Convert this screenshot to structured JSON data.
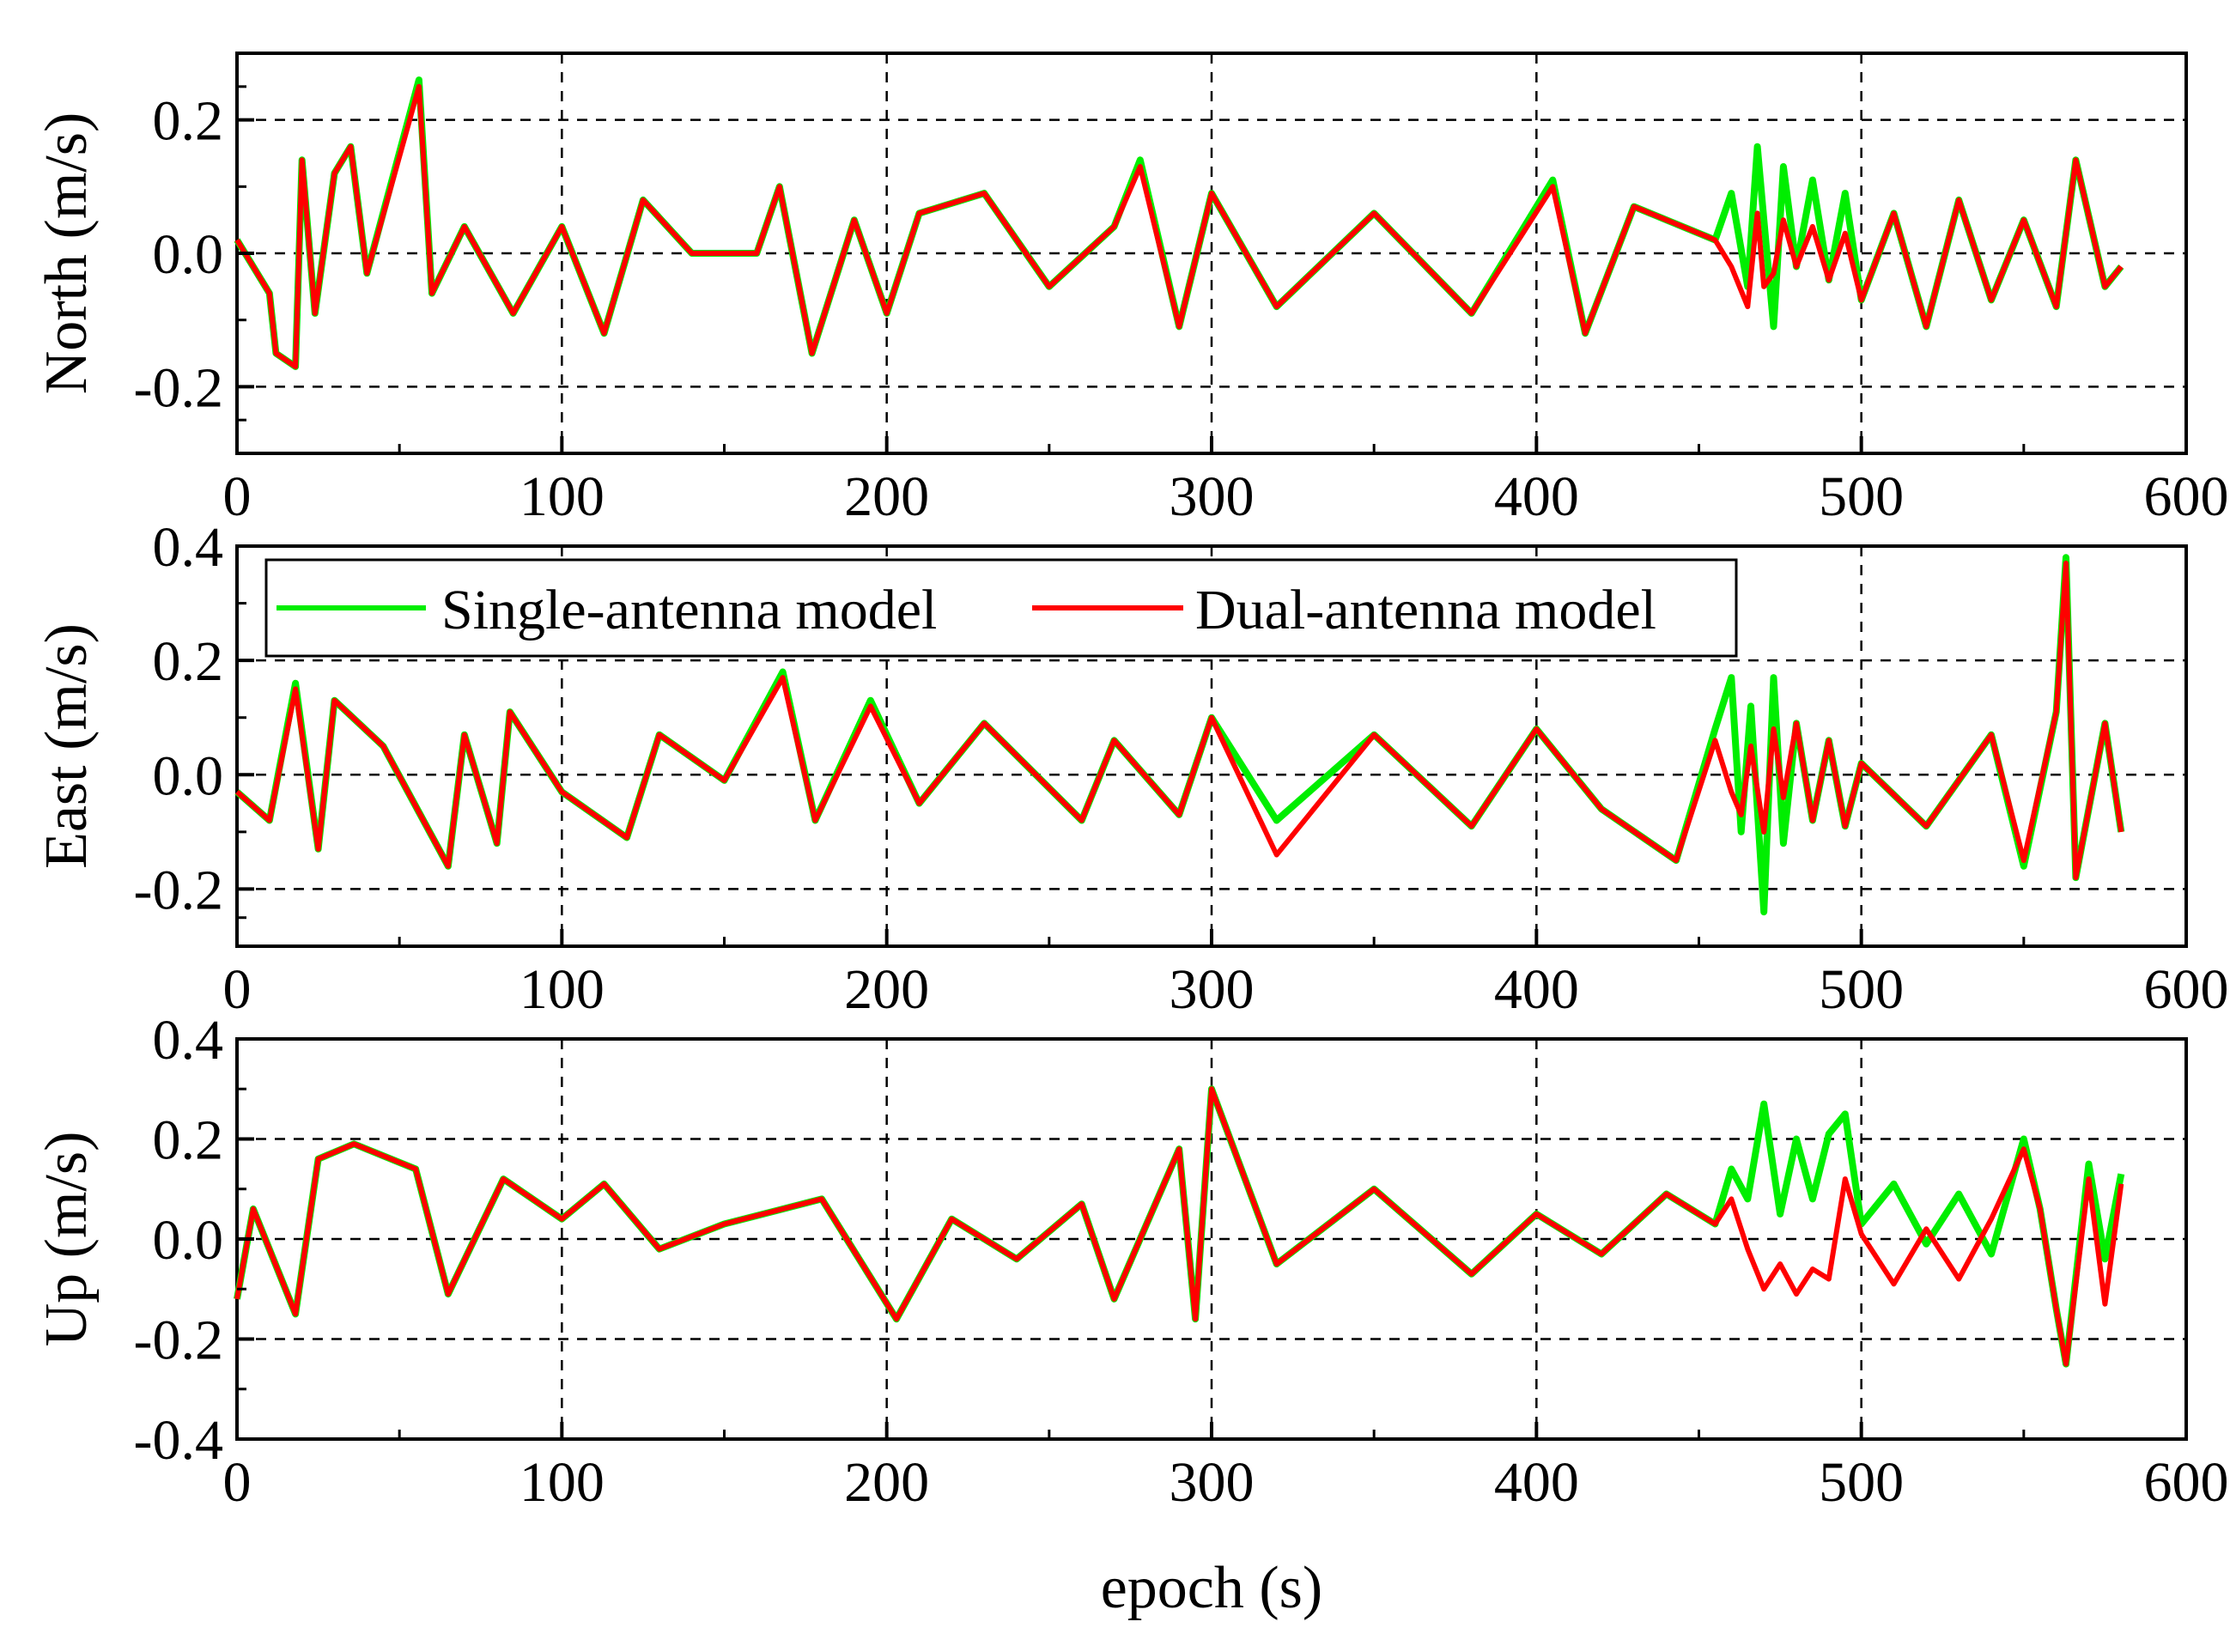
{
  "chart_data": [
    {
      "type": "line",
      "ylabel": "North (m/s)",
      "xlabel": "",
      "xlim": [
        0,
        600
      ],
      "ylim": [
        -0.3,
        0.3
      ],
      "xticks": [
        "0",
        "100",
        "200",
        "300",
        "400",
        "500",
        "600"
      ],
      "yticks": [
        "-0.2",
        "0.0",
        "0.2"
      ],
      "ytick_values": [
        -0.2,
        0.0,
        0.2
      ],
      "grid": true,
      "series": [
        {
          "name": "Single-antenna model",
          "color": "#00ee00",
          "x": [
            0,
            10,
            12,
            18,
            20,
            24,
            30,
            35,
            40,
            56,
            60,
            70,
            85,
            100,
            113,
            125,
            140,
            160,
            167,
            177,
            190,
            200,
            210,
            230,
            250,
            270,
            278,
            290,
            300,
            320,
            350,
            380,
            405,
            415,
            430,
            455,
            460,
            465,
            468,
            470,
            473,
            476,
            480,
            485,
            490,
            495,
            500,
            510,
            520,
            530,
            540,
            550,
            560,
            566,
            575,
            580
          ],
          "y": [
            0.02,
            -0.06,
            -0.15,
            -0.17,
            0.14,
            -0.09,
            0.12,
            0.16,
            -0.03,
            0.26,
            -0.06,
            0.04,
            -0.09,
            0.04,
            -0.12,
            0.08,
            0.0,
            0.0,
            0.1,
            -0.15,
            0.05,
            -0.09,
            0.06,
            0.09,
            -0.05,
            0.04,
            0.14,
            -0.11,
            0.09,
            -0.08,
            0.06,
            -0.09,
            0.11,
            -0.12,
            0.07,
            0.02,
            0.09,
            -0.05,
            0.16,
            0.05,
            -0.11,
            0.13,
            -0.02,
            0.11,
            -0.04,
            0.09,
            -0.07,
            0.06,
            -0.11,
            0.08,
            -0.07,
            0.05,
            -0.08,
            0.14,
            -0.05,
            -0.02
          ]
        },
        {
          "name": "Dual-antenna model",
          "color": "#ff0000",
          "x": [
            0,
            10,
            12,
            18,
            20,
            24,
            30,
            35,
            40,
            56,
            60,
            70,
            85,
            100,
            113,
            125,
            140,
            160,
            167,
            177,
            190,
            200,
            210,
            230,
            250,
            270,
            278,
            290,
            300,
            320,
            350,
            380,
            405,
            415,
            430,
            455,
            460,
            465,
            468,
            470,
            473,
            476,
            480,
            485,
            490,
            495,
            500,
            510,
            520,
            530,
            540,
            550,
            560,
            566,
            575,
            580
          ],
          "y": [
            0.02,
            -0.06,
            -0.15,
            -0.17,
            0.14,
            -0.09,
            0.12,
            0.16,
            -0.03,
            0.25,
            -0.06,
            0.04,
            -0.09,
            0.04,
            -0.12,
            0.08,
            0.0,
            0.0,
            0.1,
            -0.15,
            0.05,
            -0.09,
            0.06,
            0.09,
            -0.05,
            0.04,
            0.13,
            -0.11,
            0.09,
            -0.08,
            0.06,
            -0.09,
            0.1,
            -0.12,
            0.07,
            0.02,
            -0.02,
            -0.08,
            0.06,
            -0.05,
            -0.03,
            0.05,
            -0.02,
            0.04,
            -0.04,
            0.03,
            -0.07,
            0.06,
            -0.11,
            0.08,
            -0.07,
            0.05,
            -0.08,
            0.14,
            -0.05,
            -0.02
          ]
        }
      ]
    },
    {
      "type": "line",
      "ylabel": "East (m/s)",
      "xlabel": "",
      "xlim": [
        0,
        600
      ],
      "ylim": [
        -0.3,
        0.4
      ],
      "xticks": [
        "0",
        "100",
        "200",
        "300",
        "400",
        "500",
        "600"
      ],
      "yticks": [
        "-0.2",
        "0.0",
        "0.2",
        "0.4"
      ],
      "ytick_values": [
        -0.2,
        0.0,
        0.2,
        0.4
      ],
      "grid": true,
      "series": [
        {
          "name": "Single-antenna model",
          "color": "#00ee00",
          "x": [
            0,
            10,
            18,
            25,
            30,
            45,
            65,
            70,
            80,
            84,
            100,
            120,
            130,
            150,
            168,
            178,
            195,
            210,
            230,
            260,
            270,
            290,
            300,
            320,
            350,
            380,
            400,
            420,
            443,
            455,
            460,
            463,
            466,
            470,
            473,
            476,
            480,
            485,
            490,
            495,
            500,
            520,
            540,
            550,
            560,
            563,
            566,
            575,
            580
          ],
          "y": [
            -0.03,
            -0.08,
            0.16,
            -0.13,
            0.13,
            0.05,
            -0.16,
            0.07,
            -0.12,
            0.11,
            -0.03,
            -0.11,
            0.07,
            -0.01,
            0.18,
            -0.08,
            0.13,
            -0.05,
            0.09,
            -0.08,
            0.06,
            -0.07,
            0.1,
            -0.08,
            0.07,
            -0.09,
            0.08,
            -0.06,
            -0.15,
            0.08,
            0.17,
            -0.1,
            0.12,
            -0.24,
            0.17,
            -0.12,
            0.09,
            -0.08,
            0.06,
            -0.09,
            0.02,
            -0.09,
            0.07,
            -0.16,
            0.11,
            0.38,
            -0.18,
            0.09,
            -0.1
          ]
        },
        {
          "name": "Dual-antenna model",
          "color": "#ff0000",
          "x": [
            0,
            10,
            18,
            25,
            30,
            45,
            65,
            70,
            80,
            84,
            100,
            120,
            130,
            150,
            168,
            178,
            195,
            210,
            230,
            260,
            270,
            290,
            300,
            320,
            350,
            380,
            400,
            420,
            443,
            455,
            460,
            463,
            466,
            470,
            473,
            476,
            480,
            485,
            490,
            495,
            500,
            520,
            540,
            550,
            560,
            563,
            566,
            575,
            580
          ],
          "y": [
            -0.03,
            -0.08,
            0.15,
            -0.13,
            0.13,
            0.05,
            -0.16,
            0.07,
            -0.12,
            0.11,
            -0.03,
            -0.11,
            0.07,
            -0.01,
            0.17,
            -0.08,
            0.12,
            -0.05,
            0.09,
            -0.08,
            0.06,
            -0.07,
            0.1,
            -0.14,
            0.07,
            -0.09,
            0.08,
            -0.06,
            -0.15,
            0.06,
            -0.03,
            -0.07,
            0.05,
            -0.1,
            0.08,
            -0.04,
            0.09,
            -0.08,
            0.06,
            -0.09,
            0.02,
            -0.09,
            0.07,
            -0.15,
            0.11,
            0.37,
            -0.18,
            0.09,
            -0.1
          ]
        }
      ]
    },
    {
      "type": "line",
      "ylabel": "Up (m/s)",
      "xlabel": "epoch (s)",
      "xlim": [
        0,
        600
      ],
      "ylim": [
        -0.4,
        0.4
      ],
      "xticks": [
        "0",
        "100",
        "200",
        "300",
        "400",
        "500",
        "600"
      ],
      "yticks": [
        "-0.4",
        "-0.2",
        "0.0",
        "0.2",
        "0.4"
      ],
      "ytick_values": [
        -0.4,
        -0.2,
        0.0,
        0.2,
        0.4
      ],
      "grid": true,
      "series": [
        {
          "name": "Single-antenna model",
          "color": "#00ee00",
          "x": [
            0,
            5,
            18,
            25,
            36,
            55,
            65,
            82,
            100,
            113,
            130,
            150,
            180,
            203,
            220,
            240,
            260,
            270,
            290,
            295,
            300,
            320,
            350,
            380,
            400,
            420,
            440,
            455,
            460,
            465,
            470,
            475,
            480,
            485,
            490,
            495,
            500,
            510,
            520,
            530,
            540,
            550,
            555,
            560,
            563,
            570,
            575,
            580
          ],
          "y": [
            -0.12,
            0.06,
            -0.15,
            0.16,
            0.19,
            0.14,
            -0.11,
            0.12,
            0.04,
            0.11,
            -0.02,
            0.03,
            0.08,
            -0.16,
            0.04,
            -0.04,
            0.07,
            -0.12,
            0.18,
            -0.16,
            0.3,
            -0.05,
            0.1,
            -0.07,
            0.05,
            -0.03,
            0.09,
            0.03,
            0.14,
            0.08,
            0.27,
            0.05,
            0.2,
            0.08,
            0.21,
            0.25,
            0.03,
            0.11,
            -0.01,
            0.09,
            -0.03,
            0.2,
            0.06,
            -0.14,
            -0.25,
            0.15,
            -0.04,
            0.13
          ]
        },
        {
          "name": "Dual-antenna model",
          "color": "#ff0000",
          "x": [
            0,
            5,
            18,
            25,
            36,
            55,
            65,
            82,
            100,
            113,
            130,
            150,
            180,
            203,
            220,
            240,
            260,
            270,
            290,
            295,
            300,
            320,
            350,
            380,
            400,
            420,
            440,
            455,
            460,
            465,
            470,
            475,
            480,
            485,
            490,
            495,
            500,
            510,
            520,
            530,
            540,
            550,
            555,
            560,
            563,
            570,
            575,
            580
          ],
          "y": [
            -0.12,
            0.06,
            -0.15,
            0.16,
            0.19,
            0.14,
            -0.11,
            0.12,
            0.04,
            0.11,
            -0.02,
            0.03,
            0.08,
            -0.16,
            0.04,
            -0.04,
            0.07,
            -0.12,
            0.18,
            -0.16,
            0.3,
            -0.05,
            0.1,
            -0.07,
            0.05,
            -0.03,
            0.09,
            0.03,
            0.08,
            -0.02,
            -0.1,
            -0.05,
            -0.11,
            -0.06,
            -0.08,
            0.12,
            0.01,
            -0.09,
            0.02,
            -0.08,
            0.04,
            0.18,
            0.06,
            -0.14,
            -0.25,
            0.12,
            -0.13,
            0.11
          ]
        }
      ]
    }
  ],
  "legend": {
    "entries": [
      "Single-antenna model",
      "Dual-antenna model"
    ],
    "placement": "top of second panel, upper left"
  }
}
